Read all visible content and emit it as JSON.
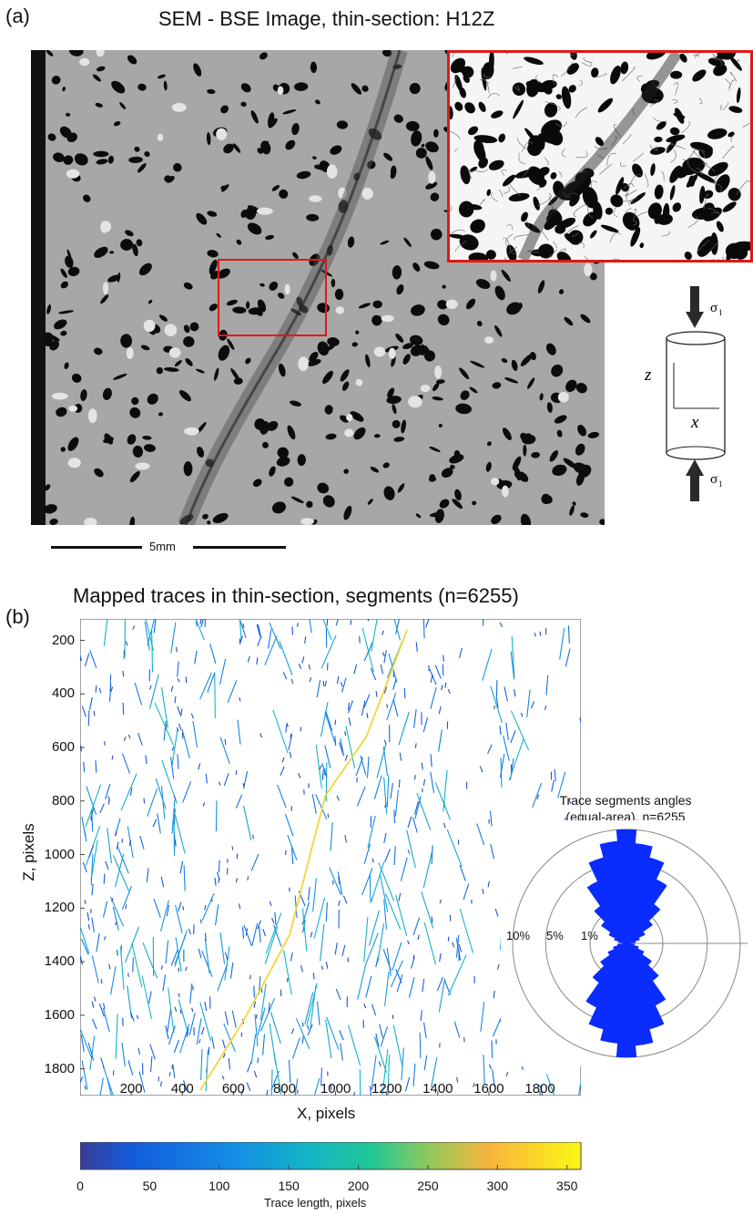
{
  "panel_a": {
    "label": "(a)",
    "title": "SEM - BSE Image, thin-section: H12Z",
    "scale_bar": "5mm",
    "schematic": {
      "sigma_top": "σ",
      "sigma_top_sub": "1",
      "sigma_bottom": "σ",
      "sigma_bottom_sub": "1",
      "axis_z": "z",
      "axis_x": "x"
    }
  },
  "panel_b": {
    "label": "(b)",
    "title": "Mapped traces in thin-section, segments (n=6255)",
    "xlabel": "X, pixels",
    "ylabel": "Z, pixels",
    "x_ticks": [
      "200",
      "400",
      "600",
      "800",
      "1000",
      "1200",
      "1400",
      "1600",
      "1800"
    ],
    "y_ticks": [
      "200",
      "400",
      "600",
      "800",
      "1000",
      "1200",
      "1400",
      "1600",
      "1800"
    ],
    "rose": {
      "title_line1": "Trace segments angles",
      "title_line2": "(equal-area), n=6255",
      "ring_labels": [
        "10%",
        "5%",
        "1%"
      ]
    },
    "colorbar": {
      "ticks": [
        "0",
        "50",
        "100",
        "150",
        "200",
        "250",
        "300",
        "350"
      ],
      "label": "Trace length, pixels"
    }
  },
  "chart_data": {
    "type": "scatter",
    "title": "Mapped traces in thin-section, segments (n=6255)",
    "xlabel": "X, pixels",
    "ylabel": "Z, pixels",
    "xlim": [
      0,
      1960
    ],
    "ylim": [
      1900,
      120
    ],
    "colorbar_range": [
      0,
      360
    ],
    "colorbar_label": "Trace length, pixels",
    "main_fault_trace_points": [
      {
        "x": 1280,
        "z": 160
      },
      {
        "x": 1120,
        "z": 560
      },
      {
        "x": 960,
        "z": 780
      },
      {
        "x": 900,
        "z": 1000
      },
      {
        "x": 820,
        "z": 1300
      },
      {
        "x": 640,
        "z": 1620
      },
      {
        "x": 470,
        "z": 1880
      }
    ],
    "rose_diagram": {
      "type": "rose",
      "title": "Trace segments angles (equal-area), n=6255",
      "dominant_orientation": "sub-vertical",
      "ring_labels": [
        "10%",
        "5%",
        "1%"
      ]
    }
  },
  "colors": {
    "sem_background": "#a7a7a7",
    "highlight_red": "#e01818",
    "rose_fill": "#0a2cff",
    "trace_blue": "#1e78d8",
    "trace_yellow": "#f2d63a"
  }
}
